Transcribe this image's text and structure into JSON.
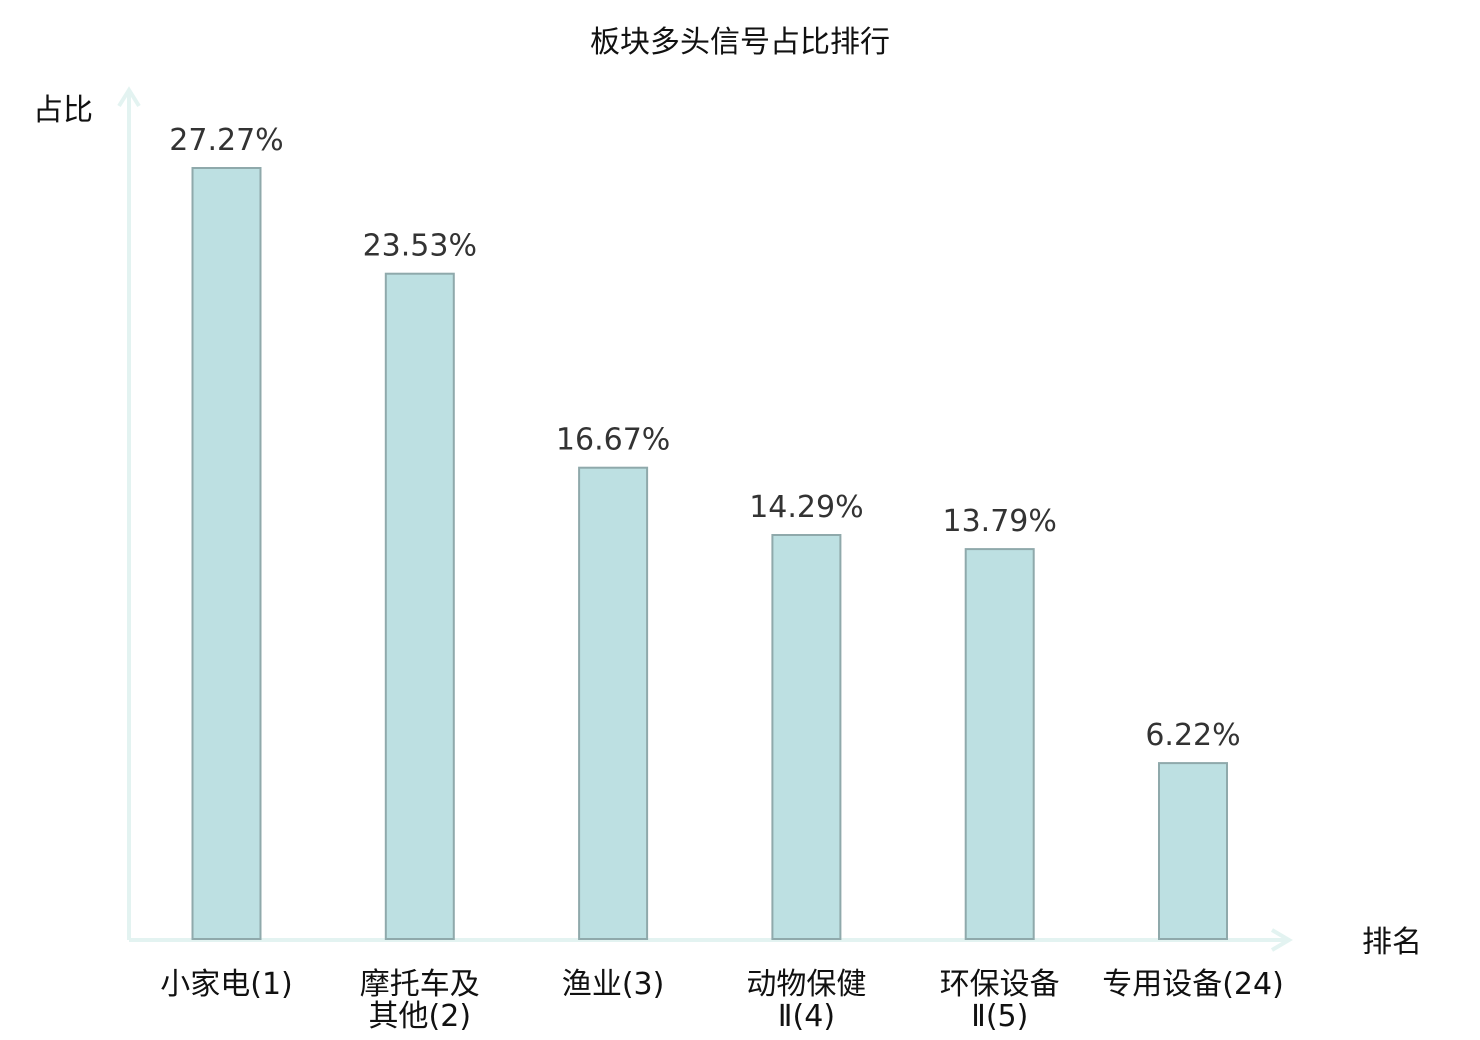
{
  "chart_data": {
    "type": "bar",
    "title": "板块多头信号占比排行",
    "ylabel": "占比",
    "xlabel": "排名",
    "ylim": [
      0,
      30
    ],
    "categories": [
      "小家电(1)",
      "摩托车及其他(2)",
      "渔业(3)",
      "动物保健Ⅱ(4)",
      "环保设备Ⅱ(5)",
      "专用设备(24)"
    ],
    "category_lines": [
      [
        "小家电(1)"
      ],
      [
        "摩托车及",
        "其他(2)"
      ],
      [
        "渔业(3)"
      ],
      [
        "动物保健",
        "Ⅱ(4)"
      ],
      [
        "环保设备",
        "Ⅱ(5)"
      ],
      [
        "专用设备(24)"
      ]
    ],
    "values": [
      27.27,
      23.53,
      16.67,
      14.29,
      13.79,
      6.22
    ],
    "value_labels": [
      "27.27%",
      "23.53%",
      "16.67%",
      "14.29%",
      "13.79%",
      "6.22%"
    ],
    "highlight_index": 5,
    "colors": {
      "bar_fill": "#bde0e2",
      "bar_stroke": "#8fa9ab",
      "axis": "#e3f3f1",
      "highlight_text": "#e8191c",
      "text": "#111111"
    },
    "grid": false,
    "legend": "none"
  }
}
